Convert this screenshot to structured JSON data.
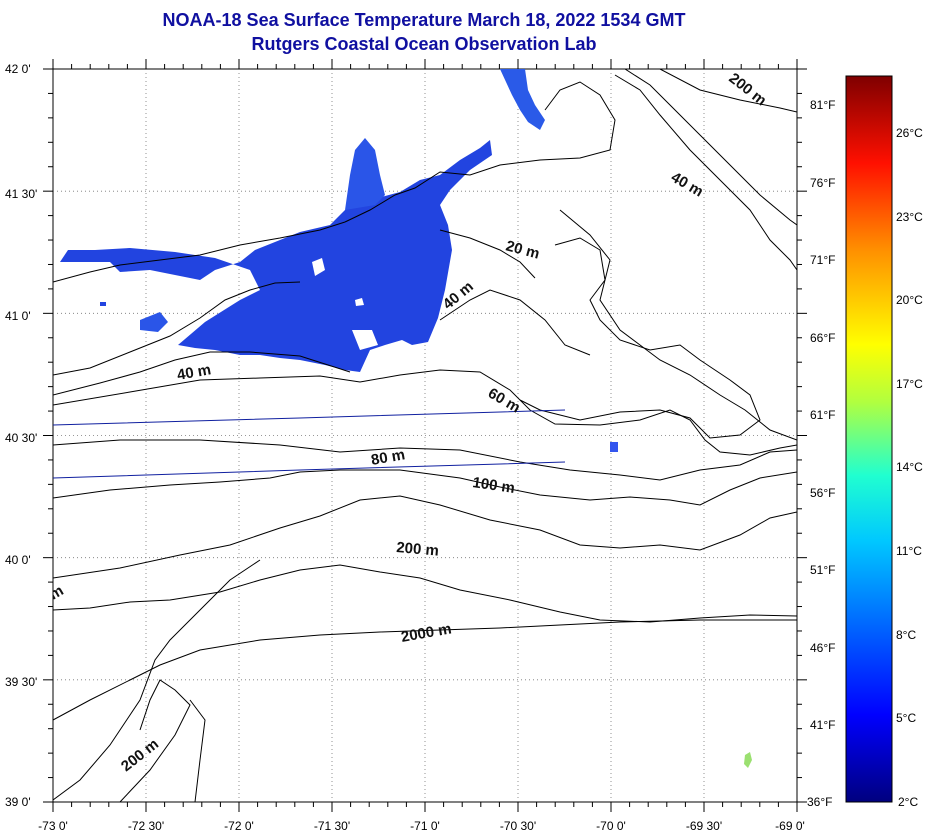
{
  "title": "NOAA-18 Sea Surface Temperature March 18, 2022 1534 GMT",
  "subtitle": "Rutgers Coastal Ocean Observation Lab",
  "lon_ticks": [
    "-73 0'",
    "-72 30'",
    "-72 0'",
    "-71 30'",
    "-71 0'",
    "-70 30'",
    "-70 0'",
    "-69 30'",
    "-69 0'"
  ],
  "lat_ticks": [
    "42 0'",
    "41 30'",
    "41 0'",
    "40 30'",
    "40 0'",
    "39 30'",
    "39 0'"
  ],
  "colorbar": {
    "fahrenheit": [
      "81°F",
      "76°F",
      "71°F",
      "66°F",
      "61°F",
      "56°F",
      "51°F",
      "46°F",
      "41°F",
      "36°F"
    ],
    "celsius": [
      "26°C",
      "23°C",
      "20°C",
      "17°C",
      "14°C",
      "11°C",
      "8°C",
      "5°C",
      "2°C"
    ],
    "colors": [
      "#00007f",
      "#0000ff",
      "#0080ff",
      "#00ffff",
      "#80ff80",
      "#ffff00",
      "#ff8000",
      "#ff0000",
      "#7f0000"
    ]
  },
  "contour_labels": [
    "200 m",
    "40 m",
    "20 m",
    "40 m",
    "40 m",
    "60 m",
    "80 m",
    "100 m",
    "200 m",
    "2000 m",
    "200 m",
    "m"
  ],
  "sst_color": "#2244e0"
}
